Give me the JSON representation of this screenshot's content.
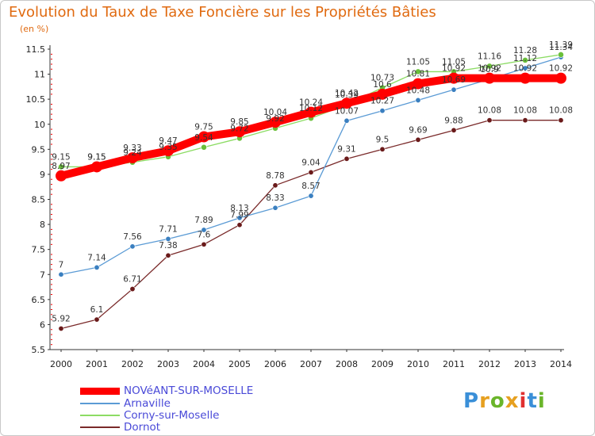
{
  "title": "Evolution du Taux de Taxe Foncière sur les Propriétés Bâties",
  "unit": "(en %)",
  "logo": {
    "text": "Proxiti",
    "colors": [
      "#3a8fd8",
      "#e6a020",
      "#6ab52a",
      "#e6a020",
      "#e03030",
      "#3a8fd8",
      "#6ab52a"
    ]
  },
  "chart_data": {
    "type": "line",
    "title": "Evolution du Taux de Taxe Foncière sur les Propriétés Bâties",
    "ylabel": "(en %)",
    "xlabel": "",
    "ylim": [
      5.5,
      11.5
    ],
    "yticks": [
      "5.5",
      "6",
      "6.5",
      "7",
      "7.5",
      "8",
      "8.5",
      "9",
      "9.5",
      "10",
      "10.5",
      "11",
      "11.5"
    ],
    "categories": [
      "2000",
      "2001",
      "2002",
      "2003",
      "2004",
      "2005",
      "2006",
      "2007",
      "2008",
      "2009",
      "2010",
      "2011",
      "2012",
      "2013",
      "2014"
    ],
    "series": [
      {
        "name": "NOVéANT-SUR-MOSELLE",
        "color": "#ff0000",
        "values": [
          8.97,
          9.15,
          9.33,
          9.47,
          9.75,
          9.85,
          10.04,
          10.24,
          10.42,
          10.6,
          10.81,
          10.92,
          10.92,
          10.92,
          10.92
        ]
      },
      {
        "name": "Arnaville",
        "color": "#5b9bd5",
        "values": [
          7,
          7.14,
          7.56,
          7.71,
          7.89,
          8.13,
          8.33,
          8.57,
          10.07,
          10.27,
          10.48,
          10.69,
          10.9,
          11.12,
          11.34
        ]
      },
      {
        "name": "Corny-sur-Moselle",
        "color": "#8cdc64",
        "values": [
          9.15,
          9.15,
          9.24,
          9.35,
          9.54,
          9.72,
          9.92,
          10.12,
          10.39,
          10.73,
          11.05,
          11.05,
          11.16,
          11.28,
          11.39
        ]
      },
      {
        "name": "Dornot",
        "color": "#7a2a2a",
        "values": [
          5.92,
          6.1,
          6.71,
          7.38,
          7.6,
          7.99,
          8.78,
          9.04,
          9.31,
          9.5,
          9.69,
          9.88,
          10.08,
          10.08,
          10.08
        ]
      }
    ],
    "point_labels": [
      [
        "8.97",
        "9.15",
        "9.33",
        "9.47",
        "9.75",
        "9.85",
        "10.04",
        "10.24",
        "10.42",
        "10.6",
        "10.81",
        "10.92",
        "10.92",
        "10.92",
        "10.92"
      ],
      [
        "7",
        "7.14",
        "7.56",
        "7.71",
        "7.89",
        "8.13",
        "8.33",
        "8.57",
        "10.07",
        "10.27",
        "10.48",
        "10.69",
        "10.9",
        "11.12",
        "11.34"
      ],
      [
        "9.15",
        "9.15",
        "9.24",
        "9.35",
        "9.54",
        "9.72",
        "9.92",
        "10.12",
        "10.39",
        "10.73",
        "11.05",
        "11.05",
        "11.16",
        "11.28",
        "11.39"
      ],
      [
        "5.92",
        "6.1",
        "6.71",
        "7.38",
        "7.6",
        "7.99",
        "8.78",
        "9.04",
        "9.31",
        "9.5",
        "9.69",
        "9.88",
        "10.08",
        "10.08",
        "10.08"
      ]
    ],
    "legend_position": "bottom-left",
    "grid": false
  }
}
